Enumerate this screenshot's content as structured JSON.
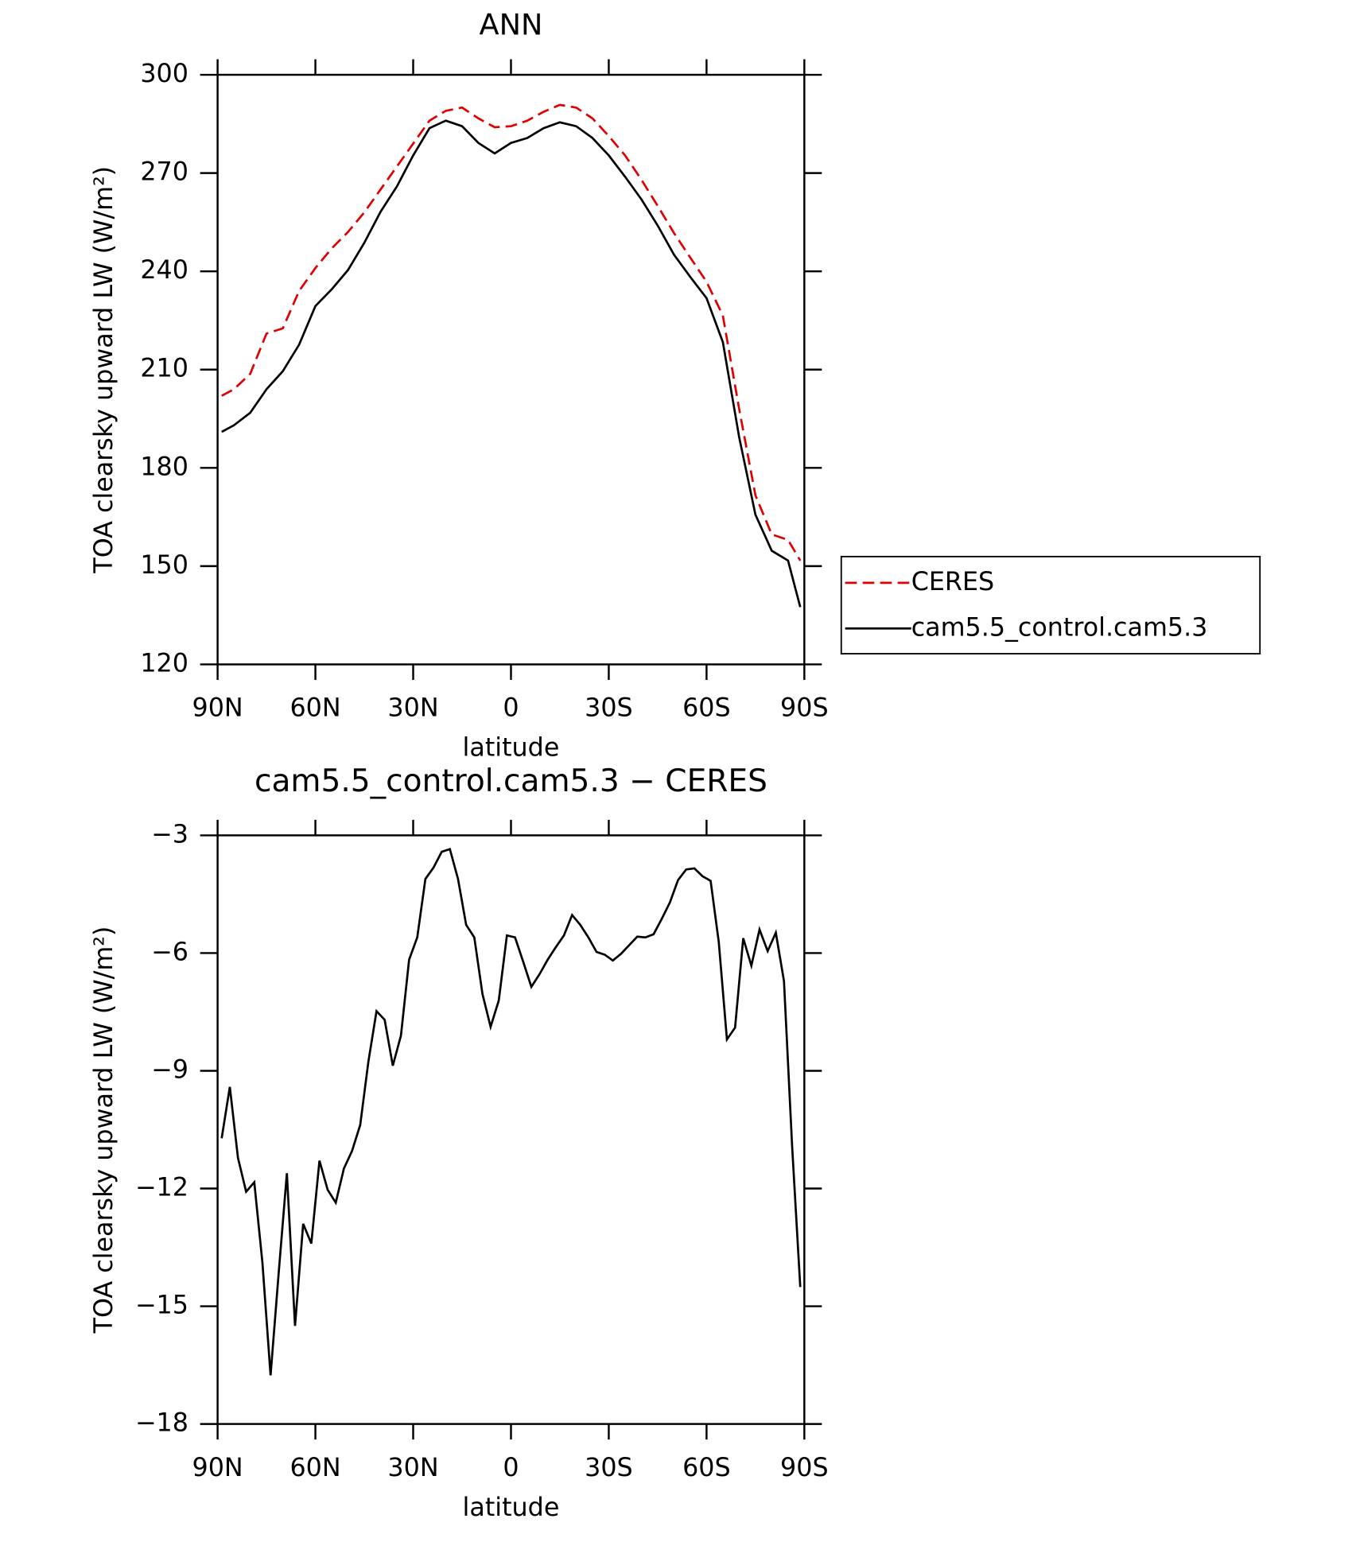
{
  "chart_data": [
    {
      "type": "line",
      "title": "ANN",
      "xlabel": "latitude",
      "ylabel": "TOA clearsky upward LW (W/m²)",
      "xlim": [
        90,
        -90
      ],
      "ylim": [
        120,
        300
      ],
      "xticks": [
        {
          "value": 90,
          "label": "90N"
        },
        {
          "value": 60,
          "label": "60N"
        },
        {
          "value": 30,
          "label": "30N"
        },
        0,
        {
          "value": -30,
          "label": "30S"
        },
        {
          "value": -60,
          "label": "60S"
        },
        {
          "value": -90,
          "label": "90S"
        }
      ],
      "yticks": [
        120,
        150,
        180,
        210,
        240,
        270,
        300
      ],
      "legend": "right",
      "x": [
        88.75,
        85,
        80,
        75,
        70,
        65,
        60,
        55,
        50,
        45,
        40,
        35,
        30,
        25,
        20,
        15,
        10,
        5,
        0,
        -5,
        -10,
        -15,
        -20,
        -25,
        -30,
        -35,
        -40,
        -45,
        -50,
        -55,
        -60,
        -65,
        -70,
        -75,
        -80,
        -85,
        -88.75
      ],
      "series": [
        {
          "name": "CERES",
          "color": "#e00000",
          "dash": true,
          "values": [
            202,
            204,
            208.7,
            221,
            222.6,
            234,
            241,
            247,
            252,
            258,
            265,
            272,
            279,
            286,
            289,
            290,
            286.7,
            284,
            284.3,
            286,
            288.7,
            290.8,
            290,
            286.7,
            281.3,
            275.4,
            268,
            260,
            251.7,
            244.2,
            236.8,
            226.5,
            198,
            171.6,
            159.7,
            158,
            151.7
          ]
        },
        {
          "name": "cam5.5_control.cam5.3",
          "color": "#000000",
          "dash": false,
          "values": [
            191,
            193,
            196.8,
            204,
            209.5,
            217.6,
            229.4,
            234.5,
            240.4,
            248.7,
            258.2,
            265.9,
            275.4,
            283.7,
            286,
            284.3,
            279.2,
            276,
            279.2,
            280.7,
            283.7,
            285.5,
            284.3,
            280.7,
            275.4,
            268.9,
            262,
            254,
            245.1,
            238.3,
            231.8,
            218.4,
            189.4,
            165.7,
            154.7,
            151.7,
            137.5
          ]
        }
      ]
    },
    {
      "type": "line",
      "title": "cam5.5_control.cam5.3 − CERES",
      "xlabel": "latitude",
      "ylabel": "TOA clearsky upward LW (W/m²)",
      "xlim": [
        90,
        -90
      ],
      "ylim": [
        -18,
        -3
      ],
      "xticks": [
        {
          "value": 90,
          "label": "90N"
        },
        {
          "value": 60,
          "label": "60N"
        },
        {
          "value": 30,
          "label": "30N"
        },
        0,
        {
          "value": -30,
          "label": "30S"
        },
        {
          "value": -60,
          "label": "60S"
        },
        {
          "value": -90,
          "label": "90S"
        }
      ],
      "yticks": [
        {
          "value": -18,
          "label": "−18"
        },
        {
          "value": -15,
          "label": "−15"
        },
        {
          "value": -12,
          "label": "−12"
        },
        {
          "value": -9,
          "label": "−9"
        },
        {
          "value": -6,
          "label": "−6"
        },
        {
          "value": -3,
          "label": "−3"
        }
      ],
      "x": [
        88.75,
        86.25,
        83.75,
        81.25,
        78.75,
        76.25,
        73.75,
        71.25,
        68.75,
        66.25,
        63.75,
        61.25,
        58.75,
        56.25,
        53.75,
        51.25,
        48.75,
        46.25,
        43.75,
        41.25,
        38.75,
        36.25,
        33.75,
        31.25,
        28.75,
        26.25,
        23.75,
        21.25,
        18.75,
        16.25,
        13.75,
        11.25,
        8.75,
        6.25,
        3.75,
        1.25,
        -1.25,
        -3.75,
        -6.25,
        -8.75,
        -11.25,
        -13.75,
        -16.25,
        -18.75,
        -21.25,
        -23.75,
        -26.25,
        -28.75,
        -31.25,
        -33.75,
        -36.25,
        -38.75,
        -41.25,
        -43.75,
        -46.25,
        -48.75,
        -51.25,
        -53.75,
        -56.25,
        -58.75,
        -61.25,
        -63.75,
        -66.25,
        -68.75,
        -71.25,
        -73.75,
        -76.25,
        -78.75,
        -81.25,
        -83.75,
        -86.25,
        -88.75
      ],
      "series": [
        {
          "color": "#000000",
          "dash": false,
          "values": [
            -10.72,
            -9.41,
            -11.22,
            -12.08,
            -11.84,
            -13.89,
            -16.76,
            -14.14,
            -11.61,
            -15.5,
            -12.9,
            -13.4,
            -11.29,
            -12.03,
            -12.36,
            -11.49,
            -11.04,
            -10.38,
            -8.77,
            -7.48,
            -7.7,
            -8.87,
            -8.1,
            -6.17,
            -5.6,
            -4.11,
            -3.82,
            -3.42,
            -3.35,
            -4.11,
            -5.28,
            -5.6,
            -7.04,
            -7.88,
            -7.21,
            -5.55,
            -5.6,
            -6.22,
            -6.86,
            -6.54,
            -6.17,
            -5.85,
            -5.55,
            -5.03,
            -5.28,
            -5.6,
            -5.97,
            -6.04,
            -6.19,
            -6.02,
            -5.8,
            -5.58,
            -5.6,
            -5.52,
            -5.13,
            -4.71,
            -4.14,
            -3.87,
            -3.84,
            -4.04,
            -4.16,
            -5.72,
            -8.2,
            -7.9,
            -5.62,
            -6.32,
            -5.4,
            -5.95,
            -5.48,
            -6.71,
            -10.92,
            -14.51
          ]
        }
      ]
    }
  ]
}
